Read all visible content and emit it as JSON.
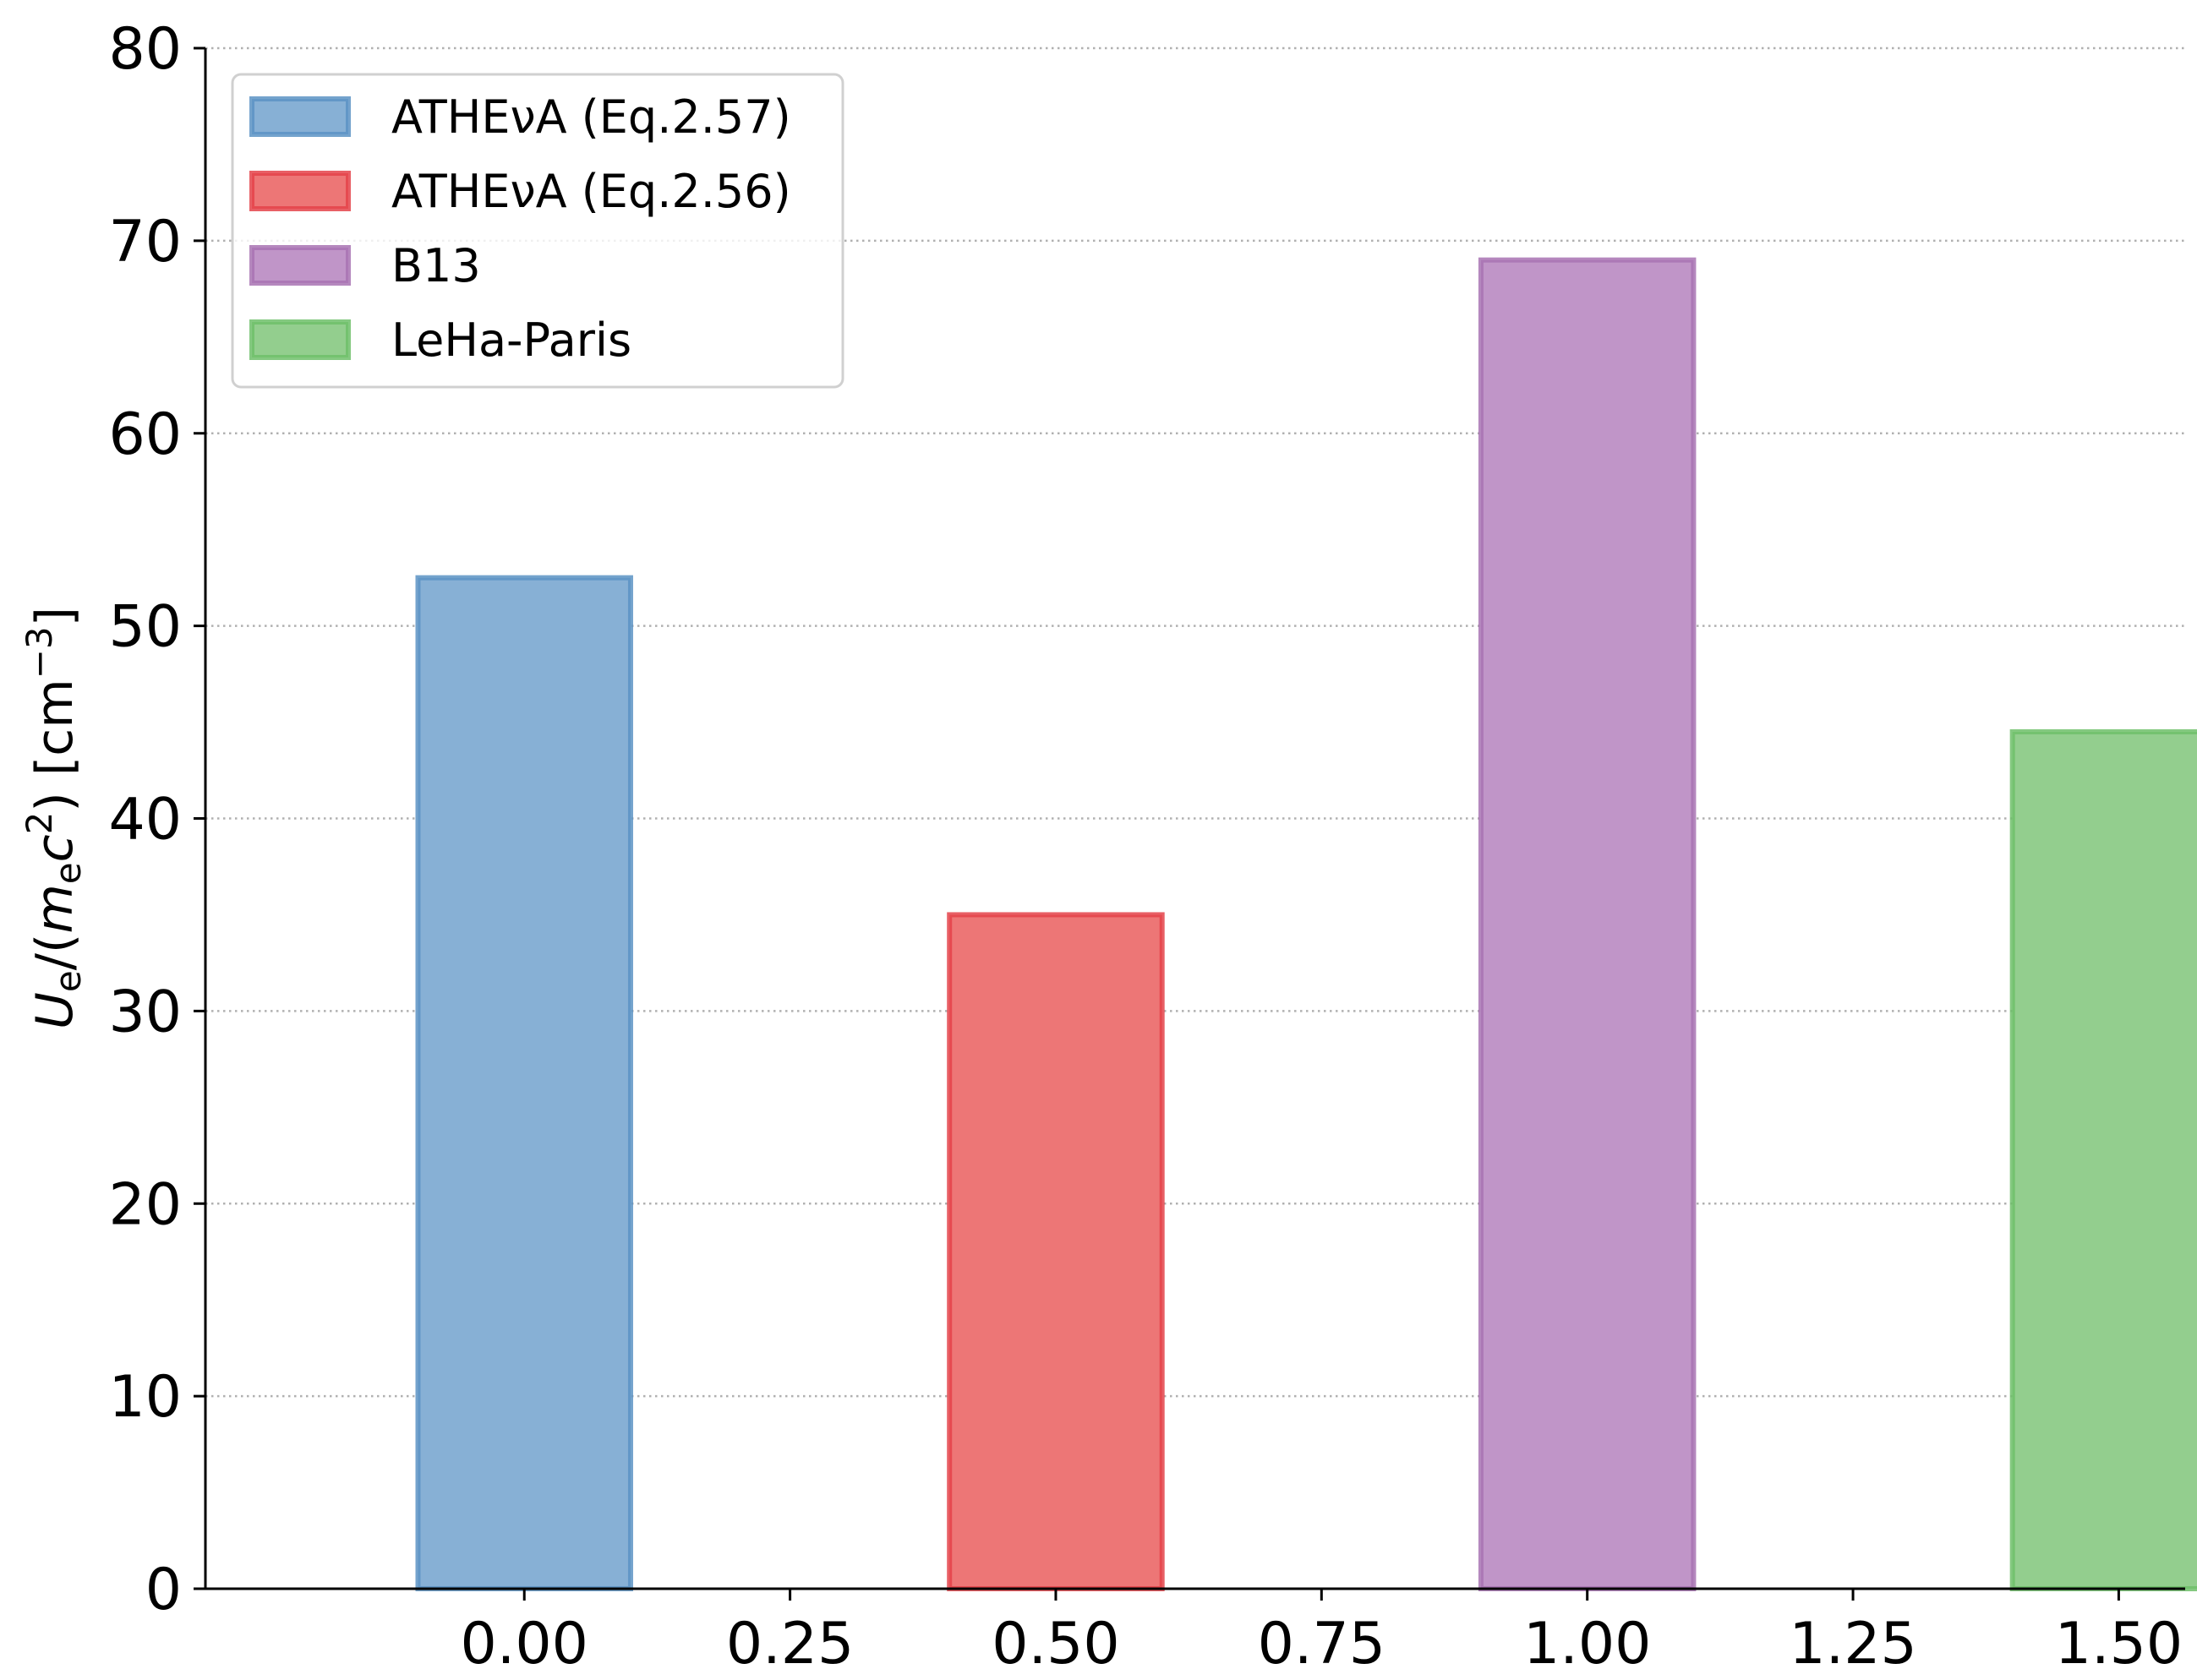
{
  "chart_data": {
    "type": "bar",
    "ylabel": "U_e/(m_e c^2) [cm^-3]",
    "ylabel_parts": {
      "U": "U",
      "e": "e",
      "slash": "/(",
      "m": "m",
      "e2": "e",
      "c": "c",
      "two": "2",
      "close": ") [cm",
      "exp": "−3",
      "bracket": "]"
    },
    "xlim": [
      -0.3,
      1.5625
    ],
    "ylim": [
      0,
      80
    ],
    "x_ticks": [
      0.0,
      0.25,
      0.5,
      0.75,
      1.0,
      1.25,
      1.5
    ],
    "x_tick_labels": [
      "0.00",
      "0.25",
      "0.50",
      "0.75",
      "1.00",
      "1.25",
      "1.50"
    ],
    "y_ticks": [
      0,
      10,
      20,
      30,
      40,
      50,
      60,
      70,
      80
    ],
    "y_tick_labels": [
      "0",
      "10",
      "20",
      "30",
      "40",
      "50",
      "60",
      "70",
      "80"
    ],
    "grid": "horizontal-dotted",
    "legend_position": "top-left",
    "bar_width": 0.2,
    "series": [
      {
        "name": "ATHEνA (Eq.2.57)",
        "x": 0.0,
        "value": 52.5,
        "fill": "#87b0d5",
        "edge": "#5c93c4"
      },
      {
        "name": "ATHEνA (Eq.2.56)",
        "x": 0.5,
        "value": 35.0,
        "fill": "#ed7676",
        "edge": "#e4434a"
      },
      {
        "name": "B13",
        "x": 1.0,
        "value": 69.0,
        "fill": "#c095c8",
        "edge": "#a873b3"
      },
      {
        "name": "LeHa-Paris",
        "x": 1.5,
        "value": 44.5,
        "fill": "#93ce8e",
        "edge": "#6fbf6a"
      }
    ]
  }
}
